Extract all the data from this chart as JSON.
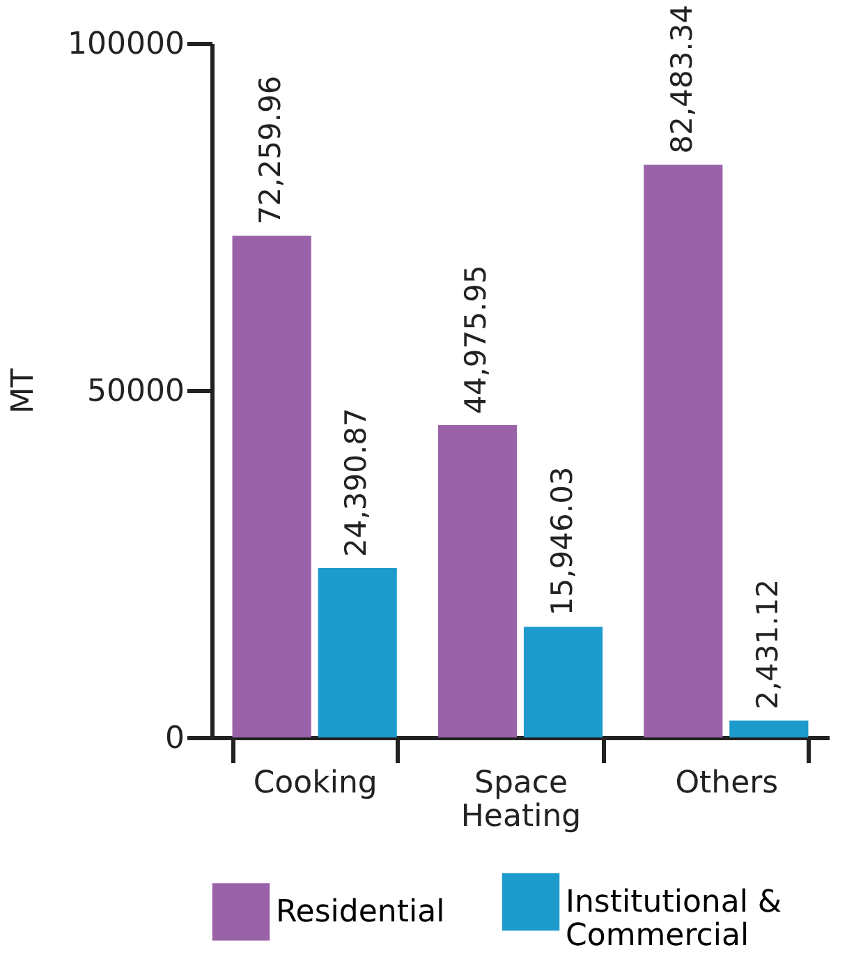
{
  "chart_data": {
    "type": "bar",
    "ylabel": "MT",
    "categories": [
      "Cooking",
      "Space Heating",
      "Others"
    ],
    "series": [
      {
        "name": "Residential",
        "color": "#9a62a8",
        "values": [
          72259.96,
          44975.95,
          82483.34
        ]
      },
      {
        "name": "Institutional & Commercial",
        "color": "#1e9bcd",
        "values": [
          24390.87,
          15946.03,
          2431.12
        ]
      }
    ],
    "value_labels": [
      [
        "72,259.96",
        "44,975.95",
        "82,483.34"
      ],
      [
        "24,390.87",
        "15,946.03",
        "2,431.12"
      ]
    ],
    "ylim": [
      0,
      100000
    ],
    "yticks": [
      0,
      50000,
      100000
    ],
    "grid": false,
    "legend": "bottom"
  }
}
